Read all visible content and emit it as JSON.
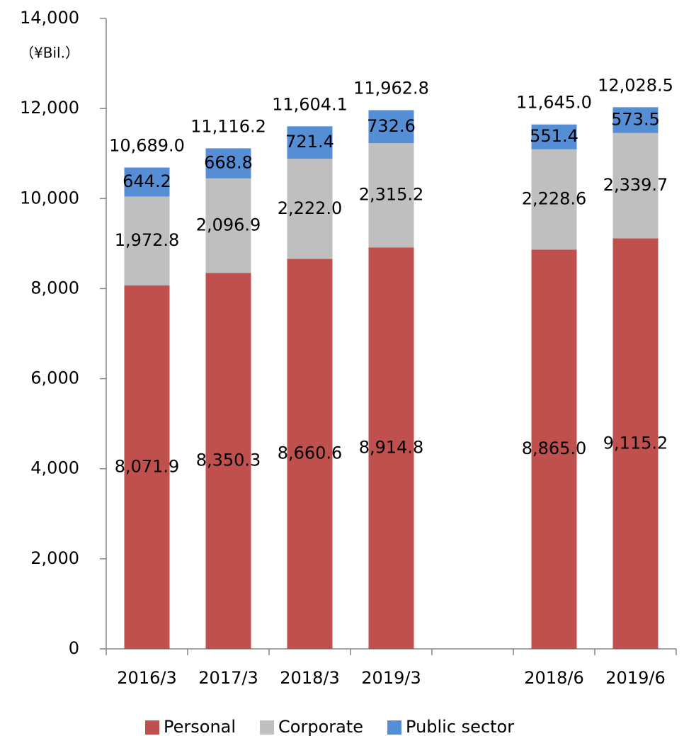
{
  "chart_data": {
    "type": "stacked_bar",
    "y_axis_label": "（¥Bil.）",
    "categories": [
      "2016/3",
      "2017/3",
      "2018/3",
      "2019/3",
      null,
      "2018/6",
      "2019/6"
    ],
    "series": [
      {
        "name": "Personal",
        "color": "#c0504d",
        "values": [
          8071.9,
          8350.3,
          8660.6,
          8914.8,
          null,
          8865.0,
          9115.2
        ],
        "value_labels": [
          "8,071.9",
          "8,350.3",
          "8,660.6",
          "8,914.8",
          null,
          "8,865.0",
          "9,115.2"
        ]
      },
      {
        "name": "Corporate",
        "color": "#bfbfbf",
        "values": [
          1972.8,
          2096.9,
          2222.0,
          2315.2,
          null,
          2228.6,
          2339.7
        ],
        "value_labels": [
          "1,972.8",
          "2,096.9",
          "2,222.0",
          "2,315.2",
          null,
          "2,228.6",
          "2,339.7"
        ]
      },
      {
        "name": "Public sector",
        "color": "#558ed5",
        "values": [
          644.2,
          668.8,
          721.4,
          732.6,
          null,
          551.4,
          573.5
        ],
        "value_labels": [
          "644.2",
          "668.8",
          "721.4",
          "732.6",
          null,
          "551.4",
          "573.5"
        ]
      }
    ],
    "totals": [
      10689.0,
      11116.2,
      11604.1,
      11962.8,
      null,
      11645.0,
      12028.5
    ],
    "total_labels": [
      "10,689.0",
      "11,116.2",
      "11,604.1",
      "11,962.8",
      null,
      "11,645.0",
      "12,028.5"
    ],
    "ylim": [
      0,
      14000
    ],
    "yticks": [
      0,
      {
        "value": 2000,
        "label": "2,000"
      },
      {
        "value": 4000,
        "label": "4,000"
      },
      {
        "value": 6000,
        "label": "6,000"
      },
      {
        "value": 8000,
        "label": "8,000"
      },
      {
        "value": 10000,
        "label": "10,000"
      },
      {
        "value": 12000,
        "label": "12,000"
      },
      {
        "value": 14000,
        "label": "14,000"
      }
    ],
    "legend": "bottom"
  }
}
